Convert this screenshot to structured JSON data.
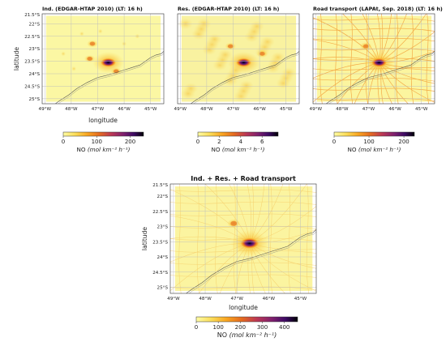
{
  "chart_data": [
    {
      "type": "heatmap",
      "title": "Ind. (EDGAR-HTAP 2010) (LT: 16 h)",
      "xlabel": "longitude",
      "ylabel": "latitude",
      "x_ticks": [
        "49°W",
        "48°W",
        "47°W",
        "46°W",
        "45°W"
      ],
      "y_ticks": [
        "21.5°S",
        "22°S",
        "22.5°S",
        "23°S",
        "23.5°S",
        "24°S",
        "24.5°S",
        "25°S"
      ],
      "xlim": [
        -49.1,
        -44.5
      ],
      "ylim": [
        -25.2,
        -21.6
      ],
      "grid": true,
      "colorbar": {
        "label": "NO",
        "unit": "(mol km⁻² h⁻¹)",
        "ticks": [
          0,
          100,
          200
        ],
        "range": [
          0,
          240
        ],
        "colormap": "inferno_r"
      },
      "hotspots": [
        {
          "lon": -46.6,
          "lat": -23.55,
          "value": 240
        },
        {
          "lon": -47.3,
          "lat": -23.4,
          "value": 60
        },
        {
          "lon": -47.2,
          "lat": -22.8,
          "value": 40
        },
        {
          "lon": -46.3,
          "lat": -23.9,
          "value": 60
        }
      ]
    },
    {
      "type": "heatmap",
      "title": "Res. (EDGAR-HTAP 2010) (LT: 16 h)",
      "xlabel": "",
      "ylabel": "",
      "x_ticks": [
        "49°W",
        "48°W",
        "47°W",
        "46°W",
        "45°W"
      ],
      "y_ticks": [
        "21.5°S",
        "22°S",
        "22.5°S",
        "23°S",
        "23.5°S",
        "24°S",
        "24.5°S",
        "25°S"
      ],
      "xlim": [
        -49.1,
        -44.5
      ],
      "ylim": [
        -25.2,
        -21.6
      ],
      "grid": true,
      "colorbar": {
        "label": "NO",
        "unit": "(mol km⁻² h⁻¹)",
        "ticks": [
          0,
          2,
          4,
          6
        ],
        "range": [
          0,
          7.5
        ],
        "colormap": "inferno_r"
      },
      "hotspots": [
        {
          "lon": -46.6,
          "lat": -23.55,
          "value": 7.5
        },
        {
          "lon": -47.1,
          "lat": -22.9,
          "value": 1.5
        },
        {
          "lon": -45.9,
          "lat": -23.2,
          "value": 1.2
        }
      ]
    },
    {
      "type": "heatmap",
      "title": "Road transport (LAPAt, Sep. 2018) (LT: 16 h)",
      "xlabel": "",
      "ylabel": "",
      "x_ticks": [
        "49°W",
        "48°W",
        "47°W",
        "46°W",
        "45°W"
      ],
      "y_ticks": [
        "21.5°S",
        "22°S",
        "22.5°S",
        "23°S",
        "23.5°S",
        "24°S",
        "24.5°S",
        "25°S"
      ],
      "xlim": [
        -49.1,
        -44.5
      ],
      "ylim": [
        -25.2,
        -21.6
      ],
      "grid": true,
      "colorbar": {
        "label": "NO",
        "unit": "(mol km⁻² h⁻¹)",
        "ticks": [
          0,
          100,
          200
        ],
        "range": [
          0,
          230
        ],
        "colormap": "inferno_r"
      },
      "hotspots": [
        {
          "lon": -46.6,
          "lat": -23.55,
          "value": 230
        },
        {
          "lon": -47.1,
          "lat": -22.9,
          "value": 90
        }
      ]
    },
    {
      "type": "heatmap",
      "title": "Ind. + Res. + Road transport",
      "xlabel": "longitude",
      "ylabel": "latitude",
      "x_ticks": [
        "49°W",
        "48°W",
        "47°W",
        "46°W",
        "45°W"
      ],
      "y_ticks": [
        "21.5°S",
        "22°S",
        "22.5°S",
        "23°S",
        "23.5°S",
        "24°S",
        "24.5°S",
        "25°S"
      ],
      "xlim": [
        -49.1,
        -44.5
      ],
      "ylim": [
        -25.2,
        -21.6
      ],
      "grid": true,
      "colorbar": {
        "label": "NO",
        "unit": "(mol km⁻² h⁻¹)",
        "ticks": [
          0,
          100,
          200,
          300,
          400
        ],
        "range": [
          0,
          460
        ],
        "colormap": "inferno_r"
      },
      "hotspots": [
        {
          "lon": -46.6,
          "lat": -23.55,
          "value": 460
        },
        {
          "lon": -47.1,
          "lat": -22.9,
          "value": 150
        }
      ]
    }
  ]
}
